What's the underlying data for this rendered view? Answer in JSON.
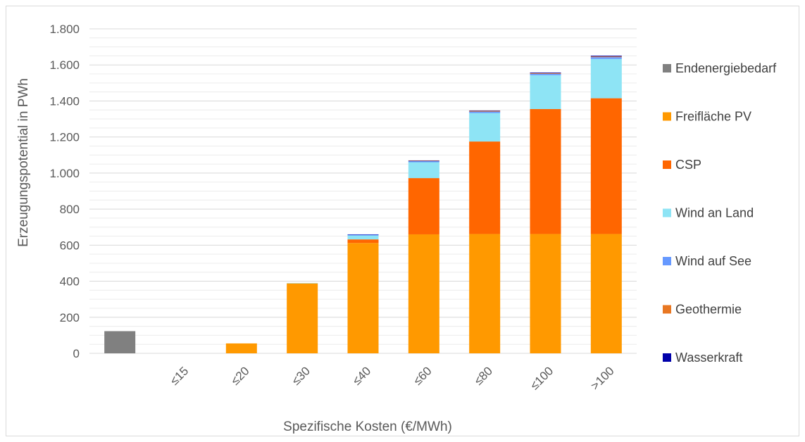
{
  "chart_data": {
    "type": "bar",
    "stacked": true,
    "title": "",
    "xlabel": "Spezifische Kosten (€/MWh)",
    "ylabel": "Erzeugungspotential in PWh",
    "ylim": [
      0,
      1800
    ],
    "yticks": [
      0,
      200,
      400,
      600,
      800,
      1000,
      1200,
      1400,
      1600,
      1800
    ],
    "ytick_labels": [
      "0",
      "200",
      "400",
      "600",
      "800",
      "1.000",
      "1.200",
      "1.400",
      "1.600",
      "1.800"
    ],
    "grid": "horizontal",
    "legend_position": "right",
    "categories": [
      "",
      "≤15",
      "≤20",
      "≤30",
      "≤40",
      "≤60",
      "≤80",
      "≤100",
      ">100"
    ],
    "series": [
      {
        "name": "Endenergiebedarf",
        "color": "#808080",
        "values": [
          123,
          0,
          0,
          0,
          0,
          0,
          0,
          0,
          0
        ]
      },
      {
        "name": "Freifläche PV",
        "color": "#FF9900",
        "values": [
          0,
          0,
          55,
          388,
          612,
          660,
          662,
          662,
          662
        ]
      },
      {
        "name": "CSP",
        "color": "#FF6600",
        "values": [
          0,
          0,
          0,
          0,
          20,
          312,
          513,
          693,
          753
        ]
      },
      {
        "name": "Wind an Land",
        "color": "#8EE4F5",
        "values": [
          0,
          0,
          0,
          2,
          22,
          88,
          158,
          188,
          218
        ]
      },
      {
        "name": "Wind auf See",
        "color": "#6699FF",
        "values": [
          0,
          0,
          0,
          0,
          4,
          6,
          8,
          8,
          10
        ]
      },
      {
        "name": "Geothermie",
        "color": "#E87722",
        "values": [
          0,
          0,
          0,
          0,
          0,
          2,
          4,
          4,
          4
        ]
      },
      {
        "name": "Wasserkraft",
        "color": "#0000AA",
        "values": [
          0,
          0,
          0,
          0,
          2,
          2,
          2,
          3,
          4
        ]
      }
    ]
  }
}
